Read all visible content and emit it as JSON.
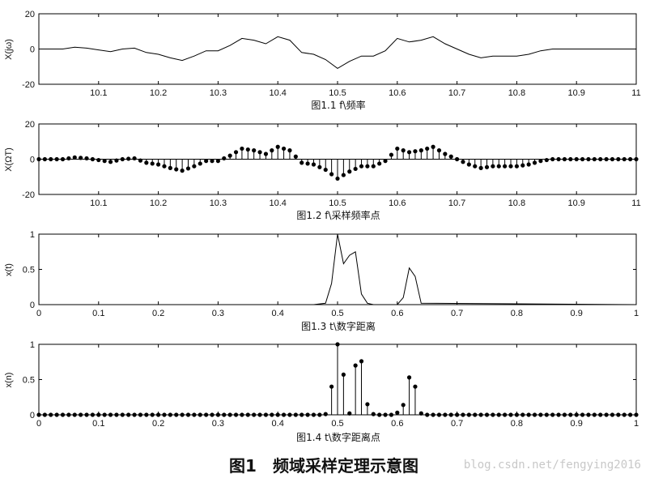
{
  "figure_title": "图1　频域采样定理示意图",
  "watermark": "blog.csdn.net/fengying2016",
  "chart_data": [
    {
      "type": "line",
      "caption": "图1.1 f\\频率",
      "ylabel": "X(jω)",
      "xlim": [
        10.0,
        11.0
      ],
      "ylim": [
        -20,
        20
      ],
      "xticks": [
        10.1,
        10.2,
        10.3,
        10.4,
        10.5,
        10.6,
        10.7,
        10.8,
        10.9,
        11
      ],
      "xtick_labels": [
        "10.1",
        "10.2",
        "10.3",
        "10.4",
        "10.5",
        "10.6",
        "10.7",
        "10.8",
        "10.9",
        "11"
      ],
      "yticks": [
        20,
        0,
        -20
      ],
      "ytick_labels": [
        "20",
        "0",
        "-20"
      ],
      "series": [
        {
          "x": [
            10.0,
            10.02,
            10.04,
            10.06,
            10.08,
            10.1,
            10.12,
            10.14,
            10.16,
            10.18,
            10.2,
            10.22,
            10.24,
            10.26,
            10.28,
            10.3,
            10.32,
            10.34,
            10.36,
            10.38,
            10.4,
            10.42,
            10.44,
            10.46,
            10.48,
            10.5,
            10.52,
            10.54,
            10.56,
            10.58,
            10.6,
            10.62,
            10.64,
            10.66,
            10.68,
            10.7,
            10.72,
            10.74,
            10.76,
            10.78,
            10.8,
            10.82,
            10.84,
            10.86,
            10.88,
            10.9,
            10.92,
            10.94,
            10.96,
            10.98,
            11.0
          ],
          "y": [
            0,
            0,
            0,
            1,
            0.5,
            -0.5,
            -1.5,
            0,
            0.5,
            -2,
            -3,
            -5,
            -6.5,
            -4,
            -1,
            -1,
            2,
            6,
            5,
            3,
            7,
            5,
            -2,
            -3,
            -6,
            -11,
            -7,
            -4,
            -4,
            -1,
            6,
            4,
            5,
            7,
            3,
            0,
            -3,
            -5,
            -4,
            -4,
            -4,
            -3,
            -1,
            0,
            0,
            0,
            0,
            0,
            0,
            0,
            0
          ]
        }
      ]
    },
    {
      "type": "stem",
      "caption": "图1.2 f\\采样频率点",
      "ylabel": "X(ΩT)",
      "xlim": [
        10.0,
        11.0
      ],
      "ylim": [
        -20,
        20
      ],
      "xticks": [
        10.1,
        10.2,
        10.3,
        10.4,
        10.5,
        10.6,
        10.7,
        10.8,
        10.9,
        11
      ],
      "xtick_labels": [
        "10.1",
        "10.2",
        "10.3",
        "10.4",
        "10.5",
        "10.6",
        "10.7",
        "10.8",
        "10.9",
        "11"
      ],
      "yticks": [
        20,
        0,
        -20
      ],
      "ytick_labels": [
        "20",
        "0",
        "-20"
      ],
      "sampling_step": 0.01,
      "series_from": 0
    },
    {
      "type": "line",
      "caption": "图1.3 t\\数字距离",
      "ylabel": "x(t)",
      "xlim": [
        0,
        1
      ],
      "ylim": [
        0,
        1
      ],
      "xticks": [
        0,
        0.1,
        0.2,
        0.3,
        0.4,
        0.5,
        0.6,
        0.7,
        0.8,
        0.9,
        1
      ],
      "xtick_labels": [
        "0",
        "0.1",
        "0.2",
        "0.3",
        "0.4",
        "0.5",
        "0.6",
        "0.7",
        "0.8",
        "0.9",
        "1"
      ],
      "yticks": [
        1,
        0.5,
        0
      ],
      "ytick_labels": [
        "1",
        "0.5",
        "0"
      ],
      "series": [
        {
          "x": [
            0,
            0.46,
            0.48,
            0.49,
            0.5,
            0.51,
            0.52,
            0.53,
            0.54,
            0.55,
            0.56,
            0.6,
            0.61,
            0.62,
            0.63,
            0.64,
            1.0
          ],
          "y": [
            0,
            0,
            0.02,
            0.3,
            1.0,
            0.58,
            0.7,
            0.75,
            0.15,
            0.02,
            0,
            0,
            0.1,
            0.52,
            0.4,
            0.02,
            0
          ]
        }
      ]
    },
    {
      "type": "stem",
      "caption": "图1.4 t\\数字距离点",
      "ylabel": "x(n)",
      "xlim": [
        0,
        1
      ],
      "ylim": [
        0,
        1
      ],
      "xticks": [
        0,
        0.1,
        0.2,
        0.3,
        0.4,
        0.5,
        0.6,
        0.7,
        0.8,
        0.9,
        1
      ],
      "xtick_labels": [
        "0",
        "0.1",
        "0.2",
        "0.3",
        "0.4",
        "0.5",
        "0.6",
        "0.7",
        "0.8",
        "0.9",
        "1"
      ],
      "yticks": [
        1,
        0.5,
        0
      ],
      "ytick_labels": [
        "1",
        "0.5",
        "0"
      ],
      "x": [
        0,
        0.01,
        0.02,
        0.03,
        0.04,
        0.05,
        0.06,
        0.07,
        0.08,
        0.09,
        0.1,
        0.11,
        0.12,
        0.13,
        0.14,
        0.15,
        0.16,
        0.17,
        0.18,
        0.19,
        0.2,
        0.21,
        0.22,
        0.23,
        0.24,
        0.25,
        0.26,
        0.27,
        0.28,
        0.29,
        0.3,
        0.31,
        0.32,
        0.33,
        0.34,
        0.35,
        0.36,
        0.37,
        0.38,
        0.39,
        0.4,
        0.41,
        0.42,
        0.43,
        0.44,
        0.45,
        0.46,
        0.47,
        0.48,
        0.49,
        0.5,
        0.51,
        0.52,
        0.53,
        0.54,
        0.55,
        0.56,
        0.57,
        0.58,
        0.59,
        0.6,
        0.61,
        0.62,
        0.63,
        0.64,
        0.65,
        0.66,
        0.67,
        0.68,
        0.69,
        0.7,
        0.71,
        0.72,
        0.73,
        0.74,
        0.75,
        0.76,
        0.77,
        0.78,
        0.79,
        0.8,
        0.81,
        0.82,
        0.83,
        0.84,
        0.85,
        0.86,
        0.87,
        0.88,
        0.89,
        0.9,
        0.91,
        0.92,
        0.93,
        0.94,
        0.95,
        0.96,
        0.97,
        0.98,
        0.99,
        1.0
      ],
      "y": [
        0,
        0,
        0,
        0,
        0,
        0,
        0,
        0,
        0,
        0,
        0,
        0,
        0,
        0,
        0,
        0,
        0,
        0,
        0,
        0,
        0,
        0,
        0,
        0,
        0,
        0,
        0,
        0,
        0,
        0,
        0,
        0,
        0,
        0,
        0,
        0,
        0,
        0,
        0,
        0,
        0,
        0,
        0,
        0,
        0,
        0,
        0,
        0,
        0.01,
        0.4,
        1.0,
        0.57,
        0.02,
        0.7,
        0.76,
        0.15,
        0.01,
        0,
        0,
        0,
        0.03,
        0.14,
        0.53,
        0.4,
        0.02,
        0,
        0,
        0,
        0,
        0,
        0,
        0,
        0,
        0,
        0,
        0,
        0,
        0,
        0,
        0,
        0,
        0,
        0,
        0,
        0,
        0,
        0,
        0,
        0,
        0,
        0,
        0,
        0,
        0,
        0,
        0,
        0,
        0,
        0,
        0,
        0
      ]
    }
  ]
}
